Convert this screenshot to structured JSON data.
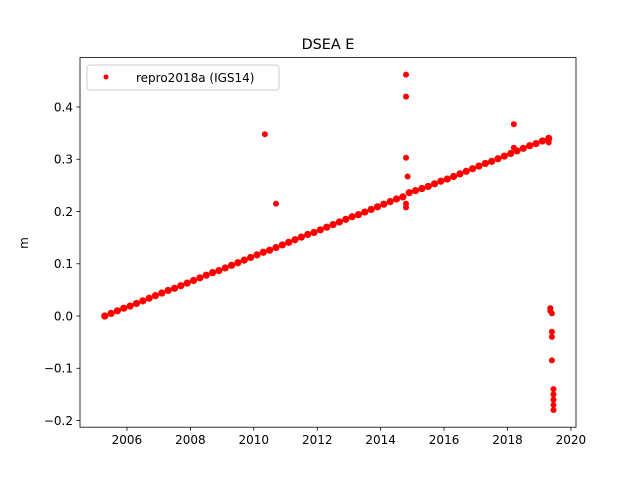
{
  "chart_data": {
    "type": "scatter",
    "title": "DSEA E",
    "xlabel": "",
    "ylabel": "m",
    "xlim": [
      2004.52,
      2020.16
    ],
    "ylim": [
      -0.2128,
      0.4946
    ],
    "xticks": [
      2006,
      2008,
      2010,
      2012,
      2014,
      2016,
      2018,
      2020
    ],
    "xtick_labels": [
      "2006",
      "2008",
      "2010",
      "2012",
      "2014",
      "2016",
      "2018",
      "2020"
    ],
    "yticks": [
      -0.2,
      -0.1,
      0.0,
      0.1,
      0.2,
      0.3,
      0.4
    ],
    "ytick_labels": [
      "−0.2",
      "−0.1",
      "0.0",
      "0.1",
      "0.2",
      "0.3",
      "0.4"
    ],
    "grid": false,
    "legend": {
      "position": "top-left",
      "entries": [
        "repro2018a (IGS14)"
      ]
    },
    "series": [
      {
        "name": "repro2018a (IGS14)",
        "color": "#ff0000",
        "marker": "circle",
        "x_start": 2005.3,
        "x_step": 0.2,
        "y": [
          0.0,
          0.005,
          0.01,
          0.015,
          0.019,
          0.024,
          0.029,
          0.034,
          0.039,
          0.044,
          0.049,
          0.053,
          0.058,
          0.063,
          0.068,
          0.073,
          0.078,
          0.083,
          0.087,
          0.092,
          0.097,
          0.102,
          0.107,
          0.112,
          0.117,
          0.122,
          0.126,
          0.131,
          0.136,
          0.141,
          0.146,
          0.151,
          0.156,
          0.16,
          0.165,
          0.17,
          0.175,
          0.18,
          0.185,
          0.19,
          0.194,
          0.199,
          0.204,
          0.209,
          0.214,
          0.219,
          0.224,
          0.228,
          0.236,
          0.24,
          0.244,
          0.248,
          0.253,
          0.258,
          0.262,
          0.267,
          0.272,
          0.277,
          0.282,
          0.287,
          0.292,
          0.296,
          0.301,
          0.306,
          0.311,
          0.316,
          0.321,
          0.326,
          0.33,
          0.335,
          0.34
        ],
        "outliers": [
          [
            2010.35,
            0.348
          ],
          [
            2010.7,
            0.215
          ],
          [
            2014.8,
            0.462
          ],
          [
            2014.8,
            0.42
          ],
          [
            2014.8,
            0.303
          ],
          [
            2014.85,
            0.267
          ],
          [
            2014.8,
            0.215
          ],
          [
            2014.8,
            0.208
          ],
          [
            2018.2,
            0.367
          ],
          [
            2018.2,
            0.322
          ],
          [
            2019.3,
            0.332
          ],
          [
            2019.35,
            0.015
          ],
          [
            2019.35,
            0.01
          ],
          [
            2019.4,
            0.005
          ],
          [
            2019.4,
            -0.03
          ],
          [
            2019.4,
            -0.04
          ],
          [
            2019.4,
            -0.085
          ],
          [
            2019.45,
            -0.14
          ],
          [
            2019.45,
            -0.15
          ],
          [
            2019.45,
            -0.16
          ],
          [
            2019.45,
            -0.17
          ],
          [
            2019.45,
            -0.18
          ]
        ]
      }
    ]
  }
}
